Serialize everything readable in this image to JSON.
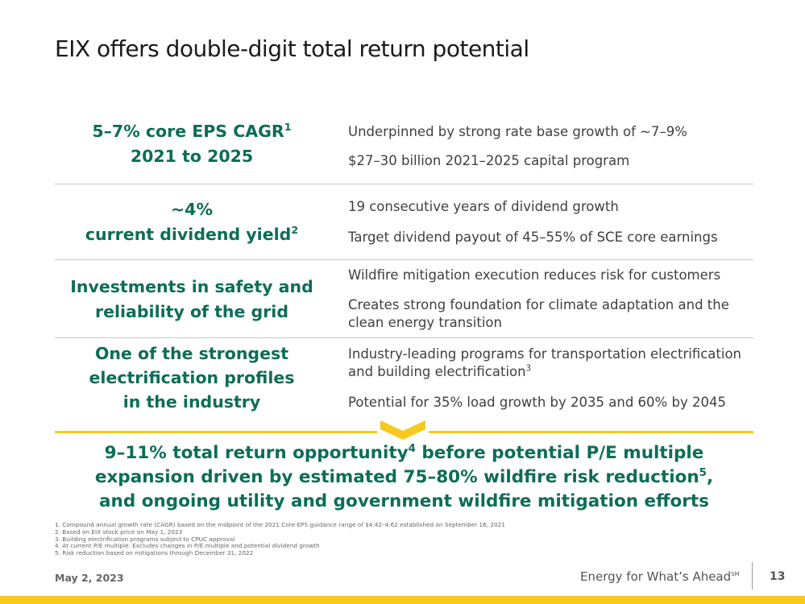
{
  "title": "EIX offers double-digit total return potential",
  "rows": [
    {
      "left_lines": [
        "5–7% core EPS CAGR",
        "2021 to 2025"
      ],
      "left_sup": "1",
      "points": [
        "Underpinned by strong rate base growth of ~7–9%",
        "$27–30 billion 2021–2025 capital program"
      ]
    },
    {
      "left_lines": [
        "~4%",
        "current dividend yield"
      ],
      "left_sup": "2",
      "points": [
        "19 consecutive years of dividend growth",
        "Target dividend payout of 45–55% of SCE core earnings"
      ]
    },
    {
      "left_lines": [
        "Investments in safety and",
        "reliability of the grid"
      ],
      "points": [
        "Wildfire mitigation execution reduces risk for customers",
        "Creates strong foundation for climate adaptation and the clean energy transition"
      ]
    },
    {
      "left_lines": [
        "One of the strongest",
        "electrification profiles",
        "in the industry"
      ],
      "points": [
        "Industry-leading programs for transportation electrification and building electrification",
        "Potential for 35% load growth by 2035 and 60% by 2045"
      ],
      "point_sup": "3"
    }
  ],
  "summary": {
    "line1_a": "9–11% total return opportunity",
    "sup1": "4",
    "line1_b": " before potential P/E multiple",
    "line2_a": "expansion driven by estimated 75–80% wildfire risk reduction",
    "sup2": "5",
    "line2_b": ",",
    "line3": "and ongoing utility and government wildfire mitigation efforts"
  },
  "footnotes": [
    "1.   Compound annual growth rate (CAGR) based on the midpoint of the 2021 Core EPS guidance range of $4.42–4.62 established on September 16, 2021",
    "2.   Based on EIX stock price on May 1, 2023",
    "3.   Building electrification programs subject to CPUC approval",
    "4.   At current P/E multiple. Excludes changes in P/E multiple and potential dividend growth",
    "5.   Risk reduction based on mitigations through December 31, 2022"
  ],
  "footer": {
    "date": "May 2, 2023",
    "tagline": "Energy for What’s Ahead",
    "tagline_mark": "SM",
    "page": "13"
  },
  "colors": {
    "accent_green": "#0d6d57",
    "gold": "#f6c91e"
  }
}
